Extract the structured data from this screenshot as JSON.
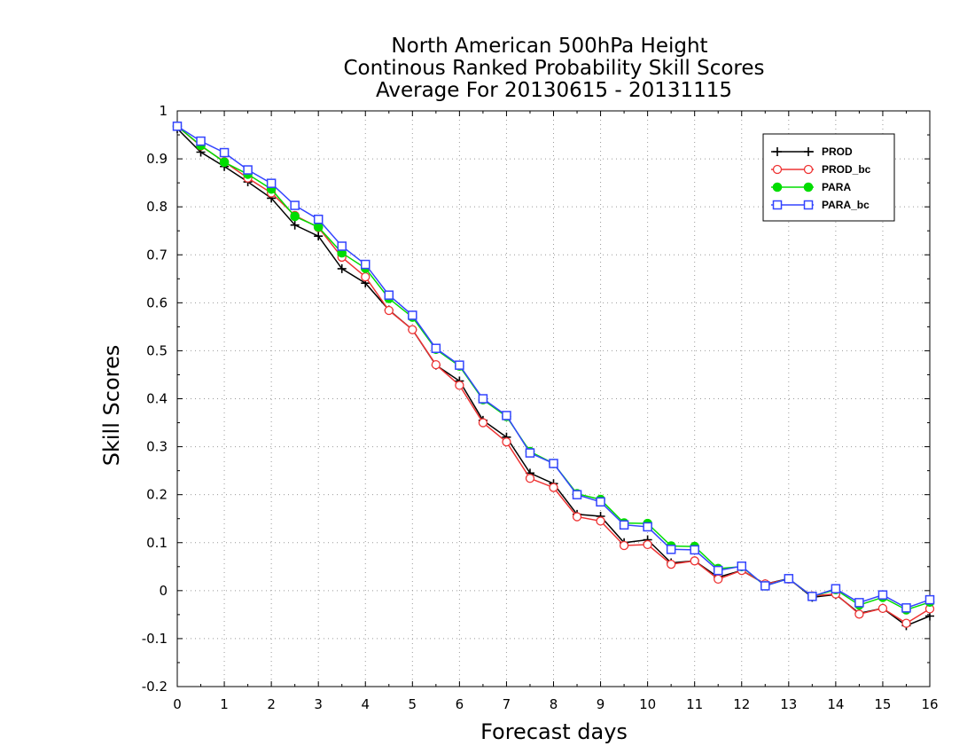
{
  "chart_data": {
    "type": "line",
    "title": [
      "North American 500hPa Height",
      "Continous Ranked Probability Skill Scores",
      "Average For 20130615 - 20131115"
    ],
    "xlabel": "Forecast days",
    "ylabel": "Skill Scores",
    "xlim": [
      0,
      16
    ],
    "ylim": [
      -0.2,
      1
    ],
    "xticks": [
      0,
      1,
      2,
      3,
      4,
      5,
      6,
      7,
      8,
      9,
      10,
      11,
      12,
      13,
      14,
      15,
      16
    ],
    "yticks": [
      -0.2,
      -0.1,
      0,
      0.1,
      0.2,
      0.3,
      0.4,
      0.5,
      0.6,
      0.7,
      0.8,
      0.9,
      1
    ],
    "ytick_labels": [
      "-0.2",
      "-0.1",
      "0",
      "0.1",
      "0.2",
      "0.3",
      "0.4",
      "0.5",
      "0.6",
      "0.7",
      "0.8",
      "0.9",
      "1"
    ],
    "grid": true,
    "legend_position": "top-right",
    "x": [
      0,
      0.5,
      1,
      1.5,
      2,
      2.5,
      3,
      3.5,
      4,
      4.5,
      5,
      5.5,
      6,
      6.5,
      7,
      7.5,
      8,
      8.5,
      9,
      9.5,
      10,
      10.5,
      11,
      11.5,
      12,
      12.5,
      13,
      13.5,
      14,
      14.5,
      15,
      15.5,
      16
    ],
    "series": [
      {
        "name": "PROD",
        "color": "#000000",
        "marker": "plus",
        "values": [
          0.963,
          0.914,
          0.884,
          0.852,
          0.818,
          0.762,
          0.739,
          0.671,
          0.641,
          0.585,
          0.544,
          0.47,
          0.437,
          0.355,
          0.32,
          0.245,
          0.223,
          0.159,
          0.155,
          0.1,
          0.106,
          0.058,
          0.062,
          0.028,
          0.042,
          0.014,
          0.025,
          -0.014,
          -0.008,
          -0.047,
          -0.037,
          -0.073,
          -0.053
        ]
      },
      {
        "name": "PROD_bc",
        "color": "#ee3333",
        "marker": "circle",
        "values": [
          0.968,
          0.927,
          0.894,
          0.86,
          0.829,
          0.782,
          0.757,
          0.695,
          0.654,
          0.584,
          0.544,
          0.471,
          0.428,
          0.35,
          0.31,
          0.234,
          0.215,
          0.154,
          0.145,
          0.094,
          0.096,
          0.055,
          0.062,
          0.024,
          0.042,
          0.014,
          0.024,
          -0.011,
          -0.007,
          -0.049,
          -0.037,
          -0.068,
          -0.038
        ]
      },
      {
        "name": "PARA",
        "color": "#00dd00",
        "marker": "filled-circle",
        "values": [
          0.968,
          0.928,
          0.893,
          0.868,
          0.837,
          0.78,
          0.758,
          0.704,
          0.672,
          0.609,
          0.57,
          0.503,
          0.468,
          0.398,
          0.363,
          0.29,
          0.265,
          0.202,
          0.19,
          0.141,
          0.14,
          0.093,
          0.092,
          0.046,
          0.05,
          0.01,
          0.025,
          -0.012,
          0.002,
          -0.03,
          -0.014,
          -0.04,
          -0.024
        ]
      },
      {
        "name": "PARA_bc",
        "color": "#3344ff",
        "marker": "square",
        "values": [
          0.968,
          0.937,
          0.913,
          0.877,
          0.849,
          0.803,
          0.774,
          0.718,
          0.68,
          0.616,
          0.574,
          0.505,
          0.47,
          0.4,
          0.365,
          0.287,
          0.265,
          0.2,
          0.185,
          0.137,
          0.133,
          0.086,
          0.085,
          0.042,
          0.051,
          0.01,
          0.025,
          -0.012,
          0.004,
          -0.025,
          -0.009,
          -0.036,
          -0.019
        ]
      }
    ]
  }
}
